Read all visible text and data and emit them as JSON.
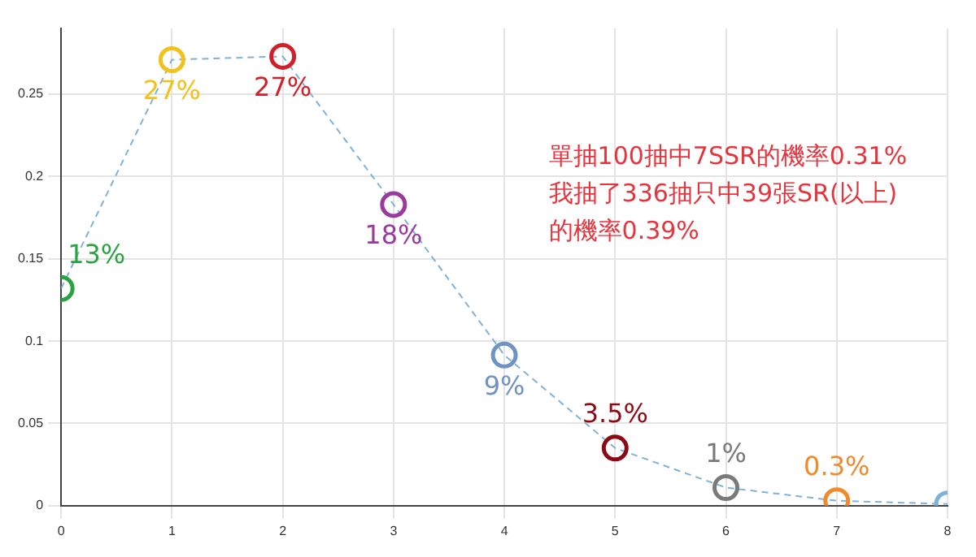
{
  "chart_data": {
    "type": "line",
    "x": [
      0,
      1,
      2,
      3,
      4,
      5,
      6,
      7,
      8
    ],
    "series": [
      {
        "color": "#7fb2d9",
        "values": [
          0.132,
          0.271,
          0.273,
          0.183,
          0.0915,
          0.035,
          0.011,
          0.003,
          0.001
        ],
        "colors": [
          "#2aa440",
          "#f2c21a",
          "#d0202a",
          "#9b3a9e",
          "#6f93c2",
          "#8b0a14",
          "#7a7a7a",
          "#f08a2a",
          "#7fb2d9"
        ],
        "value_labels": [
          "13%",
          "27%",
          "27%",
          "18%",
          "9%",
          "3.5%",
          "1%",
          "0.3%",
          null
        ]
      }
    ],
    "xlim": [
      0,
      8
    ],
    "xticks": [
      0,
      1,
      2,
      3,
      4,
      5,
      6,
      7,
      8
    ],
    "ylim": [
      0,
      0.29
    ],
    "yticks": [
      0,
      0.05,
      0.1,
      0.15,
      0.2,
      0.25
    ],
    "grid": true,
    "legend": false,
    "marker": "circle",
    "line_style": "dashed",
    "annotations": [
      "單抽100抽中7SSR的機率0.31%\n我抽了336抽只中39張SR(以上)\n的機率0.39%"
    ]
  }
}
